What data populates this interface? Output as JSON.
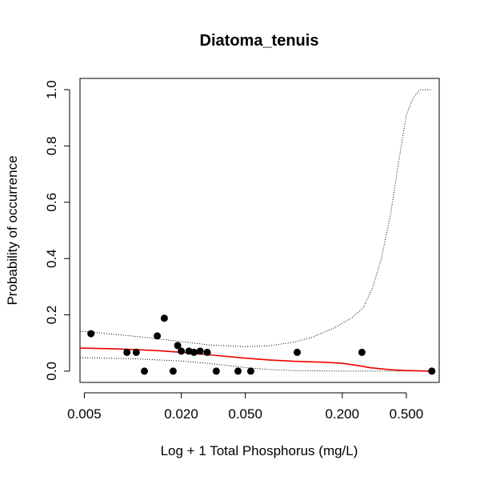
{
  "chart_data": {
    "type": "scatter",
    "title": "Diatoma_tenuis",
    "xlabel": "Log + 1 Total Phosphorus (mg/L)",
    "ylabel": "Probability of occurrence",
    "x_scale": "log",
    "xlim": [
      0.0047,
      0.8
    ],
    "ylim": [
      -0.04,
      1.04
    ],
    "x_ticks": [
      0.005,
      0.02,
      0.05,
      0.2,
      0.5
    ],
    "x_tick_labels": [
      "0.005",
      "0.020",
      "0.050",
      "0.200",
      "0.500"
    ],
    "y_ticks": [
      0.0,
      0.2,
      0.4,
      0.6,
      0.8,
      1.0
    ],
    "y_tick_labels": [
      "0.0",
      "0.2",
      "0.4",
      "0.6",
      "0.8",
      "1.0"
    ],
    "grid": false,
    "colors": {
      "fit": "#ee0000",
      "points": "#000000",
      "ci": "#000000"
    },
    "points": [
      {
        "x": 0.0055,
        "y": 0.133
      },
      {
        "x": 0.0092,
        "y": 0.067
      },
      {
        "x": 0.0105,
        "y": 0.067
      },
      {
        "x": 0.0118,
        "y": 0.0
      },
      {
        "x": 0.0142,
        "y": 0.125
      },
      {
        "x": 0.0157,
        "y": 0.188
      },
      {
        "x": 0.0178,
        "y": 0.0
      },
      {
        "x": 0.019,
        "y": 0.091
      },
      {
        "x": 0.02,
        "y": 0.071
      },
      {
        "x": 0.0223,
        "y": 0.071
      },
      {
        "x": 0.024,
        "y": 0.067
      },
      {
        "x": 0.0262,
        "y": 0.071
      },
      {
        "x": 0.029,
        "y": 0.067
      },
      {
        "x": 0.033,
        "y": 0.0
      },
      {
        "x": 0.045,
        "y": 0.0
      },
      {
        "x": 0.054,
        "y": 0.0
      },
      {
        "x": 0.105,
        "y": 0.067
      },
      {
        "x": 0.265,
        "y": 0.067
      },
      {
        "x": 0.72,
        "y": 0.0
      }
    ],
    "fit": [
      [
        0.0047,
        0.082
      ],
      [
        0.007,
        0.08
      ],
      [
        0.01,
        0.077
      ],
      [
        0.015,
        0.072
      ],
      [
        0.02,
        0.067
      ],
      [
        0.03,
        0.058
      ],
      [
        0.05,
        0.046
      ],
      [
        0.07,
        0.04
      ],
      [
        0.1,
        0.035
      ],
      [
        0.15,
        0.032
      ],
      [
        0.2,
        0.028
      ],
      [
        0.25,
        0.02
      ],
      [
        0.3,
        0.012
      ],
      [
        0.4,
        0.005
      ],
      [
        0.5,
        0.002
      ],
      [
        0.72,
        0.0
      ]
    ],
    "ci_upper": [
      [
        0.0047,
        0.142
      ],
      [
        0.008,
        0.13
      ],
      [
        0.012,
        0.12
      ],
      [
        0.02,
        0.105
      ],
      [
        0.03,
        0.093
      ],
      [
        0.05,
        0.087
      ],
      [
        0.07,
        0.09
      ],
      [
        0.1,
        0.103
      ],
      [
        0.13,
        0.12
      ],
      [
        0.18,
        0.155
      ],
      [
        0.23,
        0.19
      ],
      [
        0.27,
        0.225
      ],
      [
        0.31,
        0.3
      ],
      [
        0.35,
        0.4
      ],
      [
        0.4,
        0.56
      ],
      [
        0.45,
        0.75
      ],
      [
        0.5,
        0.91
      ],
      [
        0.55,
        0.97
      ],
      [
        0.61,
        1.0
      ],
      [
        0.72,
        1.0
      ]
    ],
    "ci_lower": [
      [
        0.0047,
        0.048
      ],
      [
        0.01,
        0.044
      ],
      [
        0.02,
        0.036
      ],
      [
        0.03,
        0.027
      ],
      [
        0.05,
        0.013
      ],
      [
        0.07,
        0.006
      ],
      [
        0.1,
        0.002
      ],
      [
        0.2,
        0.0
      ],
      [
        0.72,
        0.0
      ]
    ]
  }
}
